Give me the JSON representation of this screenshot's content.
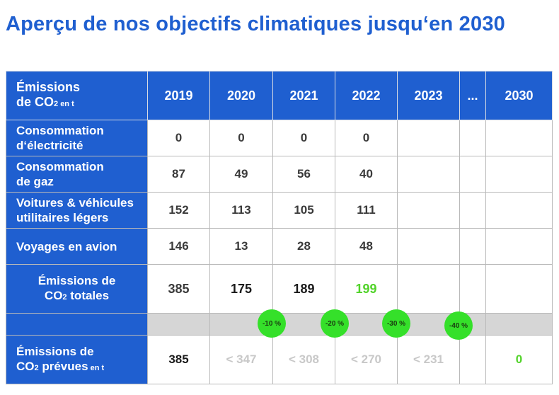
{
  "title": "Aperçu de nos objectifs climatiques jusqu‘en 2030",
  "header": {
    "label_line1": "Émissions",
    "label_line2": "de CO",
    "label_sub": "2 en t",
    "years": [
      "2019",
      "2020",
      "2021",
      "2022",
      "2023",
      "...",
      "2030"
    ]
  },
  "rows": [
    {
      "label_line1": "Consommation",
      "label_line2": "d‘électricité",
      "values": [
        "0",
        "0",
        "0",
        "0",
        "",
        "",
        ""
      ]
    },
    {
      "label_line1": "Consommation",
      "label_line2": "de gaz",
      "values": [
        "87",
        "49",
        "56",
        "40",
        "",
        "",
        ""
      ]
    },
    {
      "label_line1": "Voitures & véhicules",
      "label_line2": "utilitaires légers",
      "values": [
        "152",
        "113",
        "105",
        "111",
        "",
        "",
        ""
      ]
    },
    {
      "label_line1": "Voyages en avion",
      "label_line2": "",
      "values": [
        "146",
        "13",
        "28",
        "48",
        "",
        "",
        ""
      ]
    }
  ],
  "total": {
    "label_line1": "Émissions de",
    "label_line2": "CO",
    "label_sub": "2",
    "label_tail": " totales",
    "values": [
      "385",
      "175",
      "189",
      "199",
      "",
      "",
      ""
    ]
  },
  "predicted": {
    "label_line1": "Émissions de",
    "label_line2": "CO",
    "label_sub2": "2",
    "label_mid": " prévues",
    "label_sub": " en t",
    "values": [
      "385",
      "< 347",
      "< 308",
      "< 270",
      "< 231",
      "",
      "0"
    ]
  },
  "reduction_badges": [
    "-10 %",
    "-20 %",
    "-30 %",
    "-40 %"
  ],
  "colors": {
    "brand_blue": "#1f5fd0",
    "highlight_green": "#52d32a",
    "badge_green": "#35e02a",
    "muted_gray": "#c8c8c8"
  }
}
